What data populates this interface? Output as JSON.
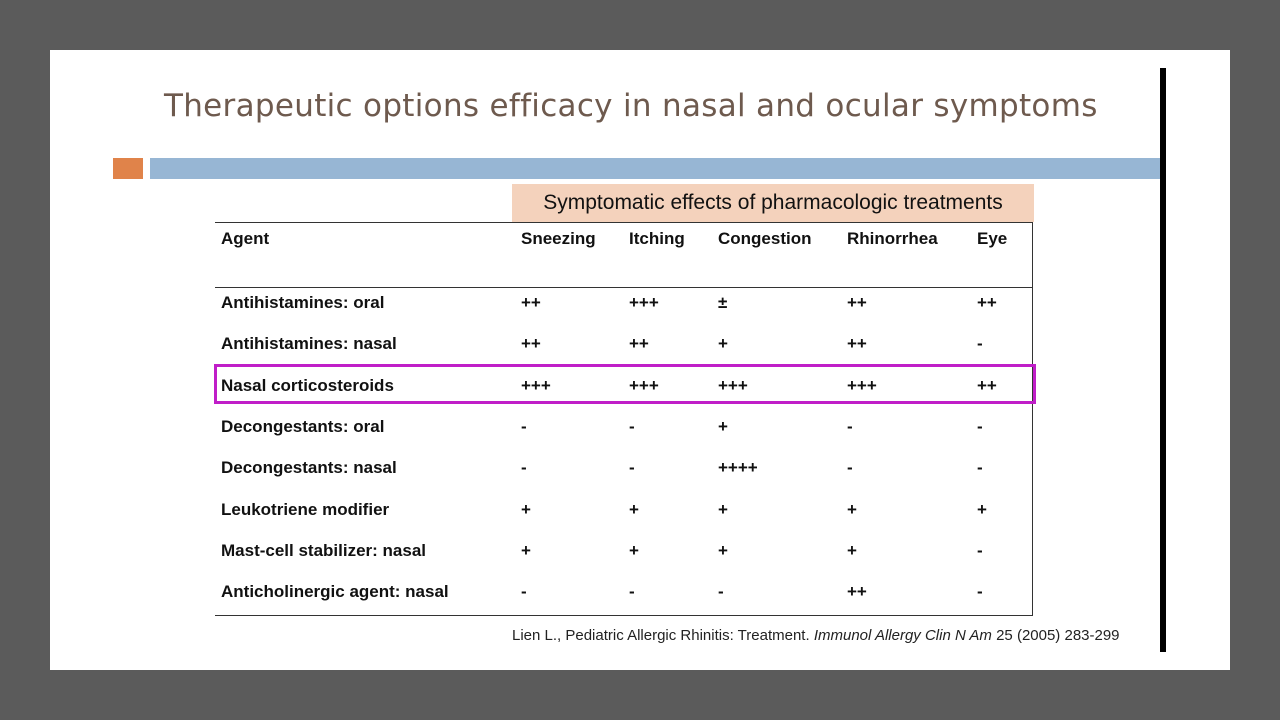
{
  "slide": {
    "title": "Therapeutic options efficacy in nasal and ocular symptoms",
    "colors": {
      "accent_square": "#e0834a",
      "accent_bar": "#97b6d4",
      "header_band": "#f4d2bc",
      "highlight": "#c01ec8"
    }
  },
  "table": {
    "caption": "Symptomatic effects of pharmacologic treatments",
    "columns": [
      "Agent",
      "Sneezing",
      "Itching",
      "Congestion",
      "Rhinorrhea",
      "Eye"
    ],
    "rows": [
      {
        "agent": "Antihistamines: oral",
        "cells": [
          "++",
          "+++",
          "±",
          "++",
          "++"
        ]
      },
      {
        "agent": "Antihistamines: nasal",
        "cells": [
          "++",
          "++",
          "+",
          "++",
          "-"
        ]
      },
      {
        "agent": "Nasal corticosteroids",
        "cells": [
          "+++",
          "+++",
          "+++",
          "+++",
          "++"
        ],
        "highlighted": true
      },
      {
        "agent": "Decongestants: oral",
        "cells": [
          "-",
          "-",
          "+",
          "-",
          "-"
        ]
      },
      {
        "agent": "Decongestants: nasal",
        "cells": [
          "-",
          "-",
          "++++",
          "-",
          "-"
        ]
      },
      {
        "agent": "Leukotriene modifier",
        "cells": [
          "+",
          "+",
          "+",
          "+",
          "+"
        ]
      },
      {
        "agent": "Mast-cell stabilizer: nasal",
        "cells": [
          "+",
          "+",
          "+",
          "+",
          "-"
        ]
      },
      {
        "agent": "Anticholinergic agent: nasal",
        "cells": [
          "-",
          "-",
          "-",
          "++",
          "-"
        ]
      }
    ]
  },
  "citation": {
    "authors": "Lien L., Pediatric Allergic Rhinitis: Treatment.",
    "journal": "Immunol Allergy Clin N Am",
    "details": "25 (2005) 283-299"
  }
}
